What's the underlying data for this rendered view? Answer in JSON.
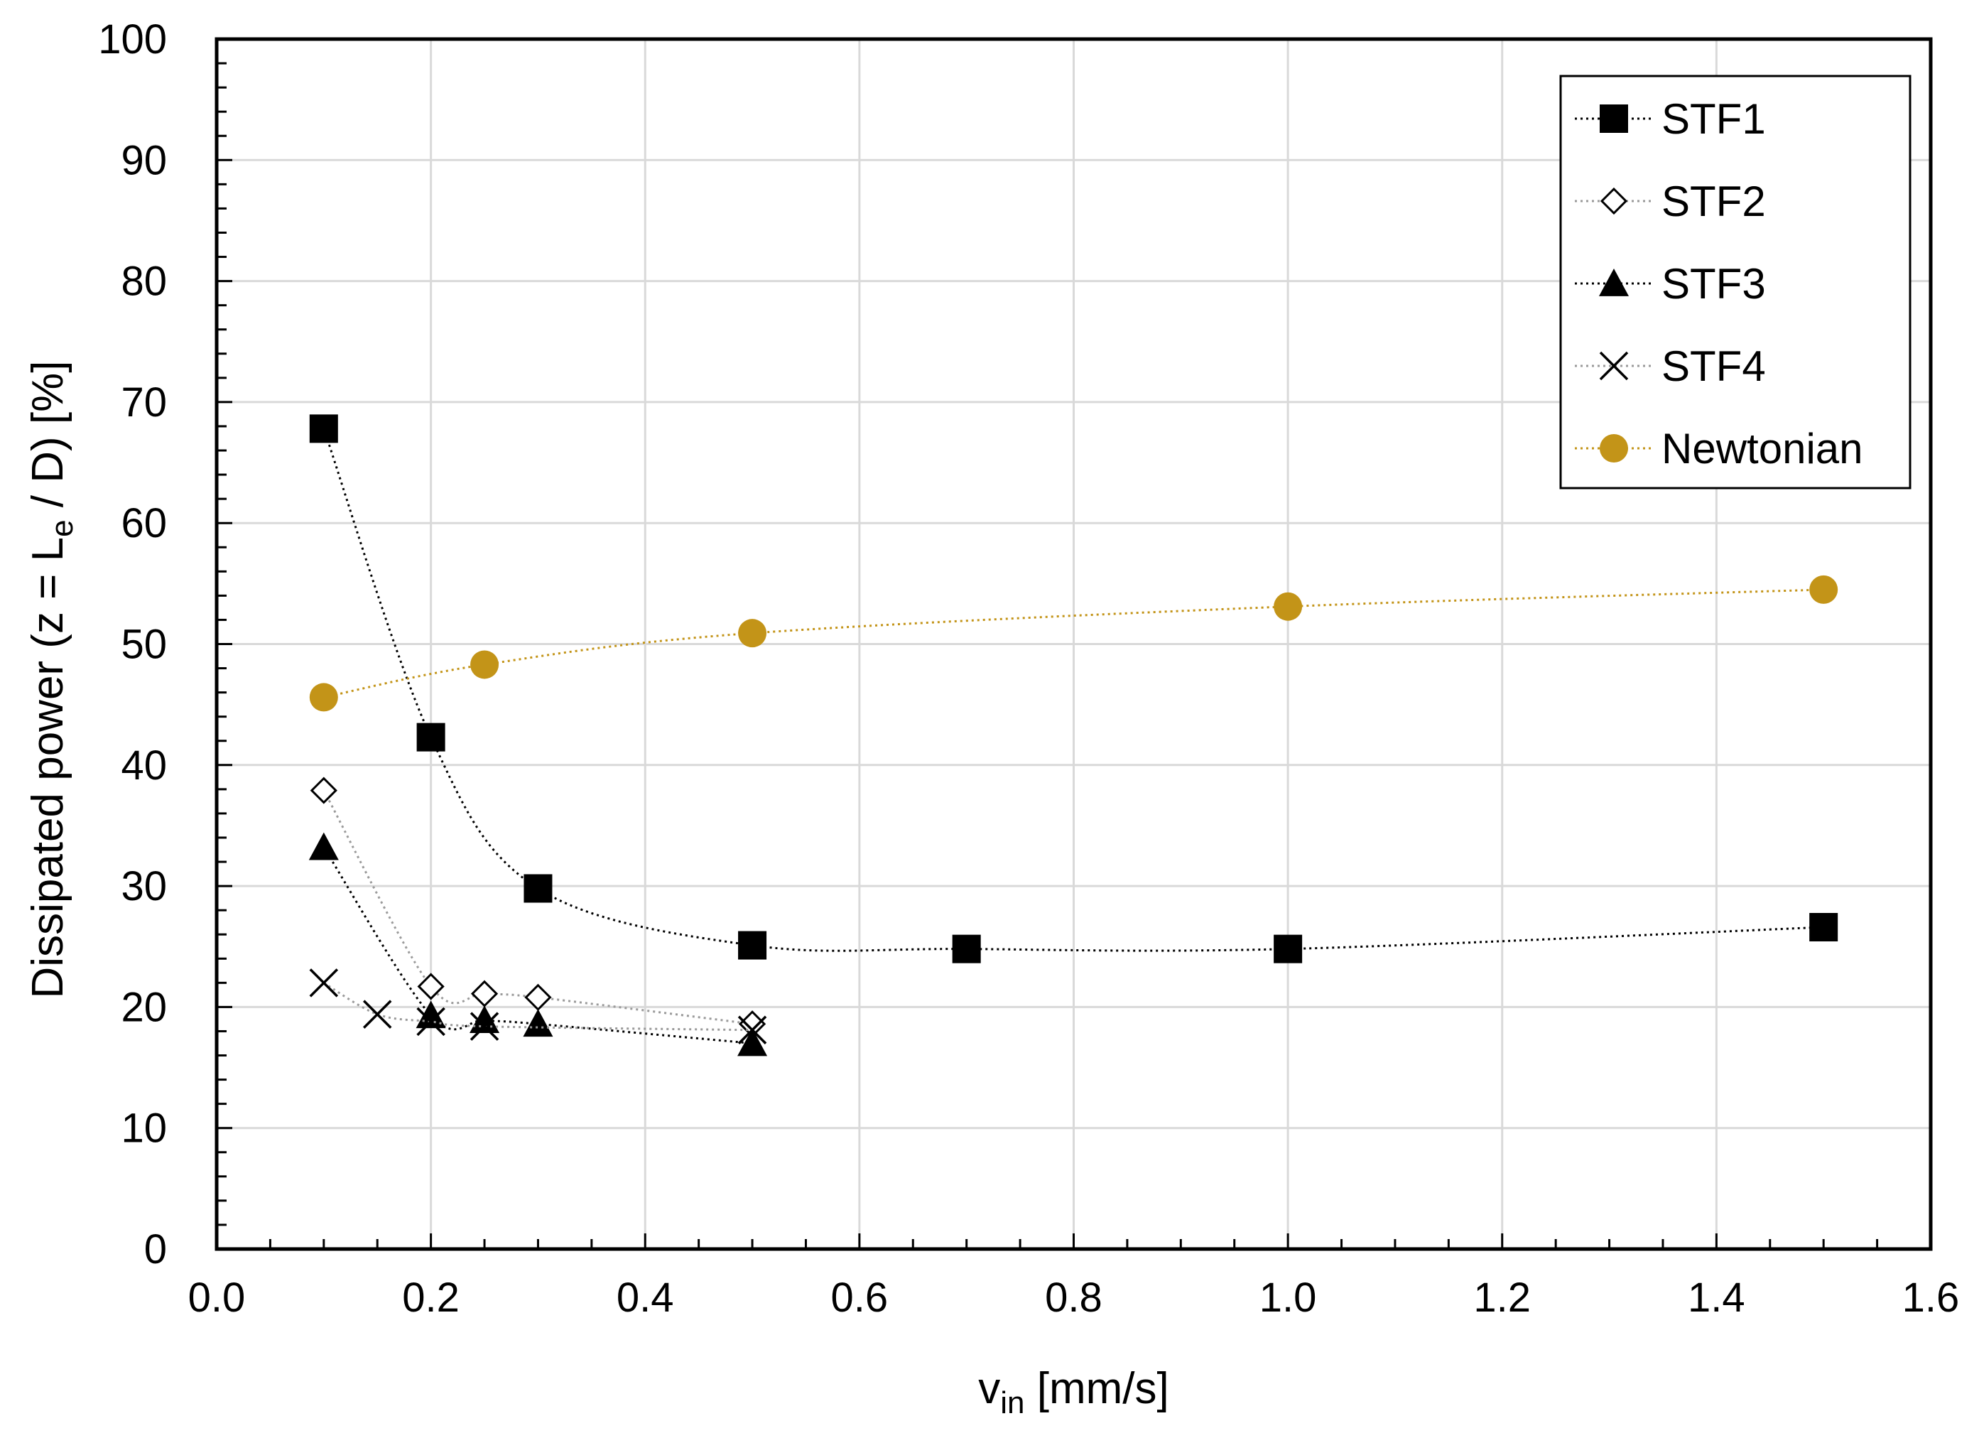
{
  "chart_data": {
    "type": "scatter",
    "title": "",
    "xlabel": "v",
    "xlabel_sub": "in",
    "xlabel_unit": " [mm/s]",
    "ylabel_pre": "Dissipated power (z = L",
    "ylabel_sub": "e",
    "ylabel_post": " / D) [%]",
    "xlim": [
      0.0,
      1.6
    ],
    "ylim": [
      0,
      100
    ],
    "xticks": [
      "0.0",
      "0.2",
      "0.4",
      "0.6",
      "0.8",
      "1.0",
      "1.2",
      "1.4",
      "1.6"
    ],
    "yticks": [
      "0",
      "10",
      "20",
      "30",
      "40",
      "50",
      "60",
      "70",
      "80",
      "90",
      "100"
    ],
    "grid": true,
    "legend_position": "top-right",
    "series": [
      {
        "name": "STF1",
        "marker": "square",
        "color": "#000000",
        "line_color": "#000000",
        "x": [
          0.1,
          0.2,
          0.3,
          0.5,
          0.7,
          1.0,
          1.5
        ],
        "y": [
          67.8,
          42.3,
          29.8,
          25.1,
          24.8,
          24.8,
          26.6
        ]
      },
      {
        "name": "STF2",
        "marker": "diamond-open",
        "color": "#000000",
        "line_color": "#9a9a9a",
        "x": [
          0.1,
          0.2,
          0.25,
          0.3,
          0.5
        ],
        "y": [
          37.9,
          21.7,
          21.1,
          20.8,
          18.6
        ]
      },
      {
        "name": "STF3",
        "marker": "triangle",
        "color": "#000000",
        "line_color": "#000000",
        "x": [
          0.1,
          0.2,
          0.25,
          0.3,
          0.5
        ],
        "y": [
          33.2,
          19.3,
          18.9,
          18.6,
          17.0
        ]
      },
      {
        "name": "STF4",
        "marker": "x",
        "color": "#000000",
        "line_color": "#9a9a9a",
        "x": [
          0.1,
          0.15,
          0.2,
          0.25,
          0.5
        ],
        "y": [
          22.0,
          19.4,
          18.8,
          18.4,
          18.1
        ]
      },
      {
        "name": "Newtonian",
        "marker": "circle",
        "color": "#c39418",
        "line_color": "#c39418",
        "x": [
          0.1,
          0.25,
          0.5,
          1.0,
          1.5
        ],
        "y": [
          45.6,
          48.3,
          50.9,
          53.1,
          54.5
        ]
      }
    ]
  }
}
